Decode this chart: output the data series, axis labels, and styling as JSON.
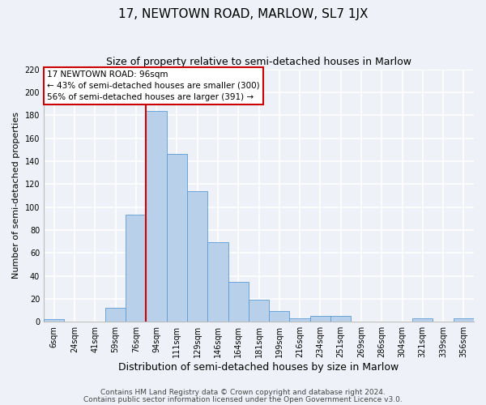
{
  "title": "17, NEWTOWN ROAD, MARLOW, SL7 1JX",
  "subtitle": "Size of property relative to semi-detached houses in Marlow",
  "xlabel": "Distribution of semi-detached houses by size in Marlow",
  "ylabel": "Number of semi-detached properties",
  "bin_labels": [
    "6sqm",
    "24sqm",
    "41sqm",
    "59sqm",
    "76sqm",
    "94sqm",
    "111sqm",
    "129sqm",
    "146sqm",
    "164sqm",
    "181sqm",
    "199sqm",
    "216sqm",
    "234sqm",
    "251sqm",
    "269sqm",
    "286sqm",
    "304sqm",
    "321sqm",
    "339sqm",
    "356sqm"
  ],
  "bin_values": [
    2,
    0,
    0,
    12,
    93,
    184,
    146,
    114,
    69,
    35,
    19,
    9,
    3,
    5,
    5,
    0,
    0,
    0,
    3,
    0,
    3
  ],
  "bar_color": "#b8d0ea",
  "bar_edge_color": "#5b9bd5",
  "vline_bin_index": 5,
  "vline_color": "#cc0000",
  "annotation_title": "17 NEWTOWN ROAD: 96sqm",
  "annotation_line1": "← 43% of semi-detached houses are smaller (300)",
  "annotation_line2": "56% of semi-detached houses are larger (391) →",
  "annotation_box_color": "#cc0000",
  "ylim": [
    0,
    220
  ],
  "yticks": [
    0,
    20,
    40,
    60,
    80,
    100,
    120,
    140,
    160,
    180,
    200,
    220
  ],
  "footer1": "Contains HM Land Registry data © Crown copyright and database right 2024.",
  "footer2": "Contains public sector information licensed under the Open Government Licence v3.0.",
  "bg_color": "#eef2f8",
  "plot_bg_color": "#eef2f8",
  "grid_color": "#ffffff",
  "title_fontsize": 11,
  "subtitle_fontsize": 9,
  "xlabel_fontsize": 9,
  "ylabel_fontsize": 8,
  "tick_fontsize": 7,
  "footer_fontsize": 6.5,
  "annot_fontsize": 7.5
}
